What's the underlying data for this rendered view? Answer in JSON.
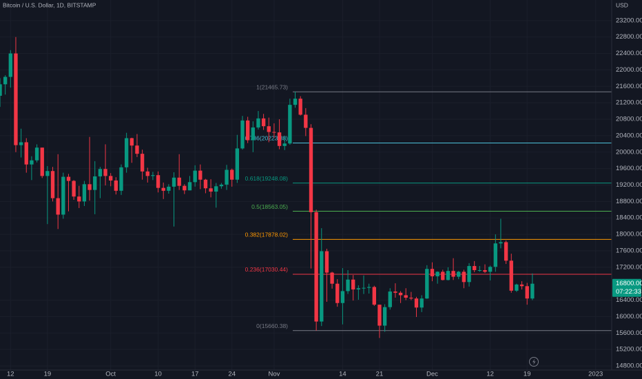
{
  "chart_data": {
    "type": "candlestick",
    "title": "Bitcoin / U.S. Dollar, 1D, BITSTAMP",
    "currency": "USD",
    "up_color": "#089981",
    "down_color": "#f23645",
    "grid": true,
    "x": [
      "2022-09-10",
      "2022-09-11",
      "2022-09-12",
      "2022-09-13",
      "2022-09-14",
      "2022-09-15",
      "2022-09-16",
      "2022-09-17",
      "2022-09-18",
      "2022-09-19",
      "2022-09-20",
      "2022-09-21",
      "2022-09-22",
      "2022-09-23",
      "2022-09-24",
      "2022-09-25",
      "2022-09-26",
      "2022-09-27",
      "2022-09-28",
      "2022-09-29",
      "2022-09-30",
      "2022-10-01",
      "2022-10-02",
      "2022-10-03",
      "2022-10-04",
      "2022-10-05",
      "2022-10-06",
      "2022-10-07",
      "2022-10-08",
      "2022-10-09",
      "2022-10-10",
      "2022-10-11",
      "2022-10-12",
      "2022-10-13",
      "2022-10-14",
      "2022-10-15",
      "2022-10-16",
      "2022-10-17",
      "2022-10-18",
      "2022-10-19",
      "2022-10-20",
      "2022-10-21",
      "2022-10-22",
      "2022-10-23",
      "2022-10-24",
      "2022-10-25",
      "2022-10-26",
      "2022-10-27",
      "2022-10-28",
      "2022-10-29",
      "2022-10-30",
      "2022-10-31",
      "2022-11-01",
      "2022-11-02",
      "2022-11-03",
      "2022-11-04",
      "2022-11-05",
      "2022-11-06",
      "2022-11-07",
      "2022-11-08",
      "2022-11-09",
      "2022-11-10",
      "2022-11-11",
      "2022-11-12",
      "2022-11-13",
      "2022-11-14",
      "2022-11-15",
      "2022-11-16",
      "2022-11-17",
      "2022-11-18",
      "2022-11-19",
      "2022-11-20",
      "2022-11-21",
      "2022-11-22",
      "2022-11-23",
      "2022-11-24",
      "2022-11-25",
      "2022-11-26",
      "2022-11-27",
      "2022-11-28",
      "2022-11-29",
      "2022-11-30",
      "2022-12-01",
      "2022-12-02",
      "2022-12-03",
      "2022-12-04",
      "2022-12-05",
      "2022-12-06",
      "2022-12-07",
      "2022-12-08",
      "2022-12-09",
      "2022-12-10",
      "2022-12-11",
      "2022-12-12",
      "2022-12-13",
      "2022-12-14",
      "2022-12-15",
      "2022-12-16",
      "2022-12-17",
      "2022-12-18",
      "2022-12-19",
      "2022-12-20"
    ],
    "open": [
      21370,
      21650,
      21830,
      22400,
      20170,
      20240,
      19700,
      19800,
      20110,
      19420,
      19540,
      18880,
      18480,
      19400,
      19300,
      18920,
      18800,
      19220,
      19080,
      19410,
      19590,
      19420,
      19310,
      19060,
      19630,
      20340,
      20160,
      19960,
      19530,
      19420,
      19440,
      19130,
      19060,
      19160,
      19380,
      19180,
      19070,
      19270,
      19550,
      19330,
      19120,
      19040,
      19170,
      19210,
      19570,
      19330,
      20090,
      20770,
      20290,
      20600,
      20820,
      20630,
      20490,
      20480,
      20150,
      20210,
      21150,
      21300,
      20910,
      20590,
      18540,
      15880,
      17590,
      17070,
      16800,
      16330,
      16620,
      16900,
      16660,
      16690,
      16700,
      16720,
      16290,
      15780,
      16230,
      16610,
      16580,
      16520,
      16460,
      16440,
      16220,
      16440,
      17160,
      16980,
      17090,
      16890,
      17110,
      16970,
      17090,
      16840,
      17230,
      17130,
      17130,
      17090,
      17210,
      17780,
      17810,
      17360,
      16630,
      16780,
      16740,
      16440
    ],
    "high": [
      21800,
      21870,
      22480,
      22800,
      20570,
      20340,
      19900,
      20190,
      20110,
      19660,
      19640,
      19950,
      19500,
      19470,
      19320,
      19180,
      19300,
      20370,
      19780,
      19640,
      20190,
      19490,
      19390,
      19700,
      20470,
      20350,
      20440,
      20060,
      19620,
      19520,
      19530,
      19260,
      19220,
      19510,
      19950,
      19220,
      19420,
      19680,
      19700,
      19350,
      19340,
      19250,
      19250,
      19690,
      19600,
      20420,
      20880,
      20860,
      20750,
      21000,
      20930,
      20840,
      20700,
      20800,
      20380,
      21300,
      21470,
      21360,
      21070,
      20680,
      18600,
      18150,
      17650,
      17090,
      16910,
      17180,
      17130,
      17010,
      16760,
      17000,
      16800,
      16750,
      16290,
      16300,
      16690,
      16810,
      16620,
      16690,
      16600,
      16480,
      16520,
      17250,
      17320,
      17100,
      17140,
      17200,
      17420,
      17110,
      17140,
      17300,
      17350,
      17230,
      17270,
      17240,
      18000,
      18380,
      17850,
      17530,
      16800,
      16860,
      16820,
      17050
    ],
    "low": [
      21100,
      21400,
      21570,
      20000,
      19870,
      19500,
      19320,
      19750,
      19370,
      18250,
      18800,
      18130,
      18380,
      18560,
      18840,
      18640,
      18690,
      18820,
      18490,
      18880,
      19190,
      19170,
      18970,
      18960,
      19500,
      19740,
      19880,
      19330,
      19260,
      19320,
      19020,
      18860,
      18990,
      18190,
      19080,
      18980,
      19070,
      19160,
      19100,
      19000,
      18900,
      18650,
      19110,
      19080,
      19160,
      19250,
      20060,
      20220,
      20000,
      20550,
      20540,
      20240,
      20350,
      20070,
      20050,
      20180,
      21080,
      20890,
      20390,
      17170,
      15660,
      15770,
      16360,
      16680,
      16240,
      15810,
      16550,
      16390,
      16410,
      16550,
      16560,
      16260,
      15480,
      15630,
      16170,
      16460,
      16330,
      16400,
      16400,
      15990,
      16110,
      16430,
      16860,
      16800,
      16880,
      16880,
      16890,
      16910,
      16690,
      16730,
      17080,
      17090,
      17060,
      16880,
      17090,
      17660,
      17280,
      16580,
      16600,
      16660,
      16290,
      16400
    ],
    "close": [
      21650,
      21830,
      22400,
      20170,
      20240,
      19700,
      19800,
      20110,
      19420,
      19540,
      18880,
      18480,
      19400,
      19300,
      18920,
      18800,
      19220,
      19080,
      19410,
      19590,
      19420,
      19310,
      19060,
      19630,
      20340,
      20160,
      19960,
      19530,
      19420,
      19440,
      19130,
      19060,
      19160,
      19380,
      19180,
      19070,
      19270,
      19550,
      19330,
      19120,
      19040,
      19170,
      19210,
      19570,
      19330,
      20090,
      20770,
      20290,
      20600,
      20820,
      20630,
      20490,
      20480,
      20150,
      20210,
      21150,
      21300,
      20910,
      20590,
      18540,
      15880,
      17590,
      17070,
      16800,
      16330,
      16620,
      16900,
      16660,
      16690,
      16700,
      16720,
      16290,
      15780,
      16230,
      16610,
      16580,
      16520,
      16460,
      16440,
      16220,
      16440,
      17160,
      16980,
      17090,
      16890,
      17110,
      16970,
      17090,
      16840,
      17230,
      17130,
      17130,
      17090,
      17210,
      17780,
      17810,
      17360,
      16630,
      16780,
      16740,
      16440,
      16800
    ],
    "xlim": [
      "2022-09-10",
      "2023-01-03"
    ],
    "xticks": [
      {
        "value": "2022-09-12",
        "label": "12"
      },
      {
        "value": "2022-09-19",
        "label": "19"
      },
      {
        "value": "2022-10-01",
        "label": "Oct"
      },
      {
        "value": "2022-10-10",
        "label": "10"
      },
      {
        "value": "2022-10-17",
        "label": "17"
      },
      {
        "value": "2022-10-24",
        "label": "24"
      },
      {
        "value": "2022-11-01",
        "label": "Nov"
      },
      {
        "value": "2022-11-14",
        "label": "14"
      },
      {
        "value": "2022-11-21",
        "label": "21"
      },
      {
        "value": "2022-12-01",
        "label": "Dec"
      },
      {
        "value": "2022-12-12",
        "label": "12"
      },
      {
        "value": "2022-12-19",
        "label": "19"
      },
      {
        "value": "2023-01-01",
        "label": "2023"
      }
    ],
    "ylim": [
      14700,
      23700
    ],
    "yticks": [
      {
        "value": 14800,
        "label": "14800.00"
      },
      {
        "value": 15200,
        "label": "15200.00"
      },
      {
        "value": 15600,
        "label": "15600.00"
      },
      {
        "value": 16000,
        "label": "16000.00"
      },
      {
        "value": 16400,
        "label": "16400.00"
      },
      {
        "value": 17200,
        "label": "17200.00"
      },
      {
        "value": 17600,
        "label": "17600.00"
      },
      {
        "value": 18000,
        "label": "18000.00"
      },
      {
        "value": 18400,
        "label": "18400.00"
      },
      {
        "value": 18800,
        "label": "18800.00"
      },
      {
        "value": 19200,
        "label": "19200.00"
      },
      {
        "value": 19600,
        "label": "19600.00"
      },
      {
        "value": 20000,
        "label": "20000.00"
      },
      {
        "value": 20400,
        "label": "20400.00"
      },
      {
        "value": 20800,
        "label": "20800.00"
      },
      {
        "value": 21200,
        "label": "21200.00"
      },
      {
        "value": 21600,
        "label": "21600.00"
      },
      {
        "value": 22000,
        "label": "22000.00"
      },
      {
        "value": 22400,
        "label": "22400.00"
      },
      {
        "value": 22800,
        "label": "22800.00"
      },
      {
        "value": 23200,
        "label": "23200.00"
      }
    ],
    "last_price": {
      "value": 16800,
      "label": "16800.00",
      "countdown": "07:22:33"
    },
    "fib_levels": [
      {
        "value": 21465.73,
        "label": "1(21465.73)",
        "color": "#787b86"
      },
      {
        "value": 20223.38,
        "label": "0.786(20223.38)",
        "color": "#4dc4dc"
      },
      {
        "value": 19248.08,
        "label": "0.618(19248.08)",
        "color": "#089981"
      },
      {
        "value": 18563.05,
        "label": "0.5(18563.05)",
        "color": "#4caf50"
      },
      {
        "value": 17878.02,
        "label": "0.382(17878.02)",
        "color": "#ff9800"
      },
      {
        "value": 17030.44,
        "label": "0.236(17030.44)",
        "color": "#f23645"
      },
      {
        "value": 15660.38,
        "label": "0(15660.38)",
        "color": "#787b86"
      }
    ]
  }
}
